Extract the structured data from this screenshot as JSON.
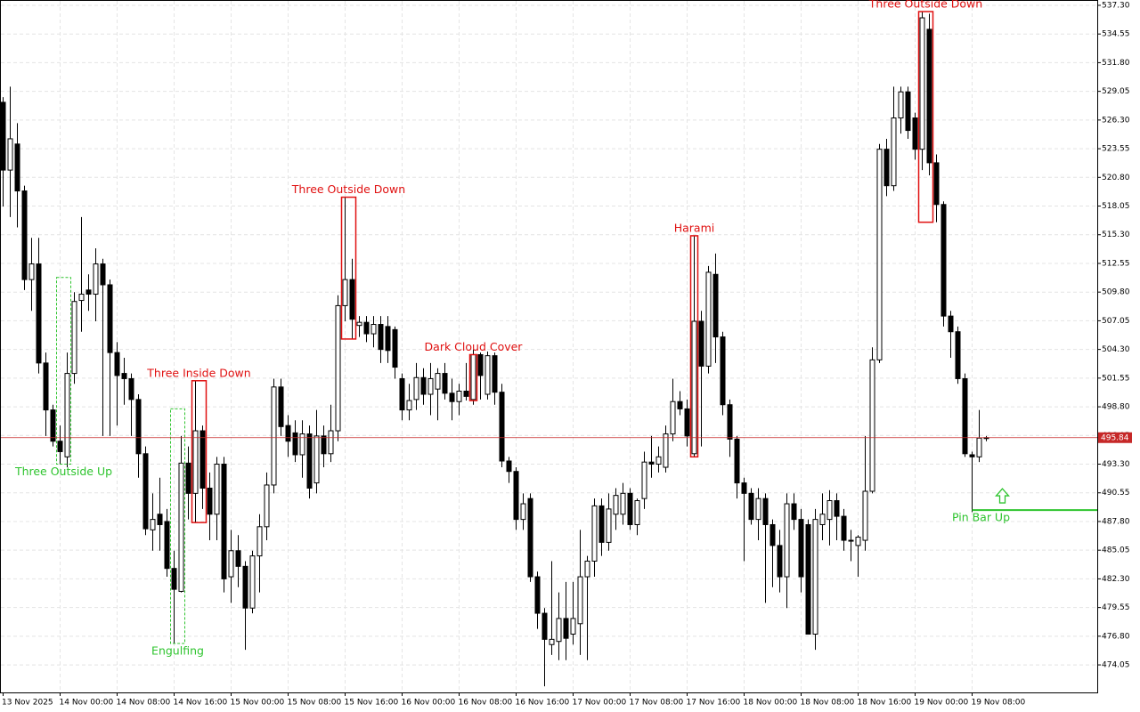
{
  "chart_data": {
    "type": "candlestick",
    "categories": [
      "13 Nov 2025",
      null,
      null,
      null,
      null,
      null,
      null,
      null,
      "14 Nov 00:00",
      null,
      null,
      null,
      null,
      null,
      null,
      null,
      "14 Nov 08:00",
      null,
      null,
      null,
      null,
      null,
      null,
      null,
      "14 Nov 16:00",
      null,
      null,
      null,
      null,
      null,
      null,
      null,
      "15 Nov 00:00",
      null,
      null,
      null,
      null,
      null,
      null,
      null,
      "15 Nov 08:00",
      null,
      null,
      null,
      null,
      null,
      null,
      null,
      "15 Nov 16:00",
      null,
      null,
      null,
      null,
      null,
      null,
      null,
      "16 Nov 00:00",
      null,
      null,
      null,
      null,
      null,
      null,
      null,
      "16 Nov 08:00",
      null,
      null,
      null,
      null,
      null,
      null,
      null,
      "16 Nov 16:00",
      null,
      null,
      null,
      null,
      null,
      null,
      null,
      "17 Nov 00:00",
      null,
      null,
      null,
      null,
      null,
      null,
      null,
      "17 Nov 08:00",
      null,
      null,
      null,
      null,
      null,
      null,
      null,
      "17 Nov 16:00",
      null,
      null,
      null,
      null,
      null,
      null,
      null,
      "18 Nov 00:00",
      null,
      null,
      null,
      null,
      null,
      null,
      null,
      "18 Nov 08:00",
      null,
      null,
      null,
      null,
      null,
      null,
      null,
      "18 Nov 16:00",
      null,
      null,
      null,
      null,
      null,
      null,
      null,
      "19 Nov 00:00",
      null,
      null,
      null,
      null,
      null,
      null,
      null,
      "19 Nov 08:00",
      null,
      null
    ],
    "open": [
      528,
      521.5,
      524,
      519.5,
      511,
      512.5,
      503,
      498.5,
      495.5,
      494,
      502,
      509,
      510,
      509.6,
      512.5,
      510.5,
      504,
      502,
      501.5,
      499.5,
      494.3,
      487,
      488.5,
      487.8,
      483.3,
      481.1,
      493.4,
      490.5,
      496.5,
      491,
      488.5,
      493.3,
      482.5,
      485,
      483.5,
      479.5,
      484.5,
      487.3,
      491.3,
      500.7,
      497,
      496.3,
      494.2,
      496.2,
      491.5,
      496,
      494.3,
      496.5,
      508.5,
      511,
      506.6,
      506.9,
      505.8,
      506.7,
      506.5,
      506.2,
      501.5,
      498.5,
      499.5,
      501.6,
      500,
      500.5,
      502,
      500.1,
      499.3,
      500.3,
      499.5,
      503.8,
      500,
      503.7,
      500.2,
      493.6,
      492.6,
      488,
      490,
      482.5,
      479,
      476,
      476.3,
      478.5,
      477,
      478,
      482.5,
      484,
      489.3,
      485.8,
      488.5,
      488.5,
      490.5,
      487.5,
      490,
      493.5,
      493.3,
      493,
      496.2,
      499.3,
      498.6,
      494.3,
      507,
      502.7,
      511.5,
      505.5,
      499,
      495.7,
      491.5,
      490.5,
      488,
      490,
      487.5,
      485.5,
      482.5,
      489.5,
      488,
      487.5,
      477,
      487.5,
      488,
      489.8,
      488.3,
      486,
      485.5,
      486,
      490.7,
      503.3,
      523.5,
      520,
      526.5,
      529,
      526.5,
      523.5,
      535,
      522.2,
      518.2,
      507.5,
      506,
      501.5,
      494.2,
      494,
      495.8
    ],
    "high": [
      528.5,
      529.5,
      526,
      520,
      515,
      515,
      504,
      499,
      497,
      504,
      509.8,
      517,
      511.5,
      514,
      513,
      511,
      505,
      503.5,
      502,
      500,
      495,
      490.5,
      492,
      489,
      485,
      496,
      495,
      501.3,
      497,
      492.5,
      494,
      494,
      487,
      486.5,
      484,
      485,
      488.5,
      492.5,
      501.5,
      501.5,
      498,
      497.5,
      497.5,
      497,
      498.5,
      497,
      499,
      509.5,
      518.9,
      513,
      507.5,
      507.5,
      507.5,
      507.5,
      507.5,
      506.5,
      502,
      501,
      503,
      502.5,
      503,
      502.5,
      503,
      501.5,
      501,
      503,
      504.3,
      504,
      504.1,
      504,
      501,
      494,
      493,
      490.5,
      490.5,
      483,
      479.5,
      484,
      481,
      482,
      482,
      487,
      484.5,
      490,
      490,
      490.5,
      491,
      491.5,
      491,
      490,
      494.5,
      496,
      495,
      497,
      501.5,
      500.3,
      499.5,
      515.2,
      508,
      512.3,
      513.5,
      506,
      499.5,
      496,
      492,
      491,
      491,
      490.5,
      488,
      487,
      490.5,
      490.5,
      489,
      488,
      489,
      490.5,
      490.8,
      490.5,
      489,
      487,
      486.5,
      496,
      504.5,
      524,
      524.5,
      529.5,
      529.5,
      529.5,
      527,
      536.7,
      536.5,
      523,
      518.5,
      508,
      506.5,
      502,
      494.5,
      498.5,
      496
    ],
    "low": [
      518,
      517,
      516,
      510,
      508,
      502,
      496,
      495,
      493.3,
      493,
      501,
      506,
      508,
      507,
      496,
      496,
      497,
      499,
      496,
      492,
      486.5,
      485,
      485,
      482.5,
      476.1,
      481,
      488,
      487.7,
      489,
      486,
      486,
      481,
      480,
      481.5,
      475.5,
      479,
      481,
      486,
      490.5,
      496,
      494,
      493.5,
      492,
      490,
      490.5,
      493,
      493.5,
      495.5,
      507,
      505.3,
      505.5,
      505,
      504.5,
      503,
      503,
      501.5,
      497.5,
      497.5,
      498.5,
      499,
      498,
      497.5,
      499.5,
      497.5,
      498,
      499.4,
      499,
      499.5,
      499.5,
      499,
      493,
      491.5,
      487,
      487,
      482,
      477.5,
      472,
      475,
      474.5,
      474.5,
      476,
      475,
      474.5,
      482.5,
      484.5,
      485,
      487,
      487.5,
      487,
      486.5,
      489,
      492,
      492.5,
      492.5,
      495.5,
      498,
      495,
      494,
      495,
      502,
      503,
      498,
      494,
      490,
      484,
      487.5,
      486,
      480,
      481.5,
      481,
      479.5,
      487,
      481,
      477,
      475.5,
      486,
      485.5,
      486,
      485,
      484,
      482.5,
      485,
      490.5,
      503,
      519,
      519.5,
      525,
      524.5,
      522.5,
      521.5,
      521,
      516.5,
      506.5,
      503.5,
      501,
      494,
      488.7,
      493.5,
      495.5
    ],
    "close": [
      521.5,
      524.5,
      519.5,
      511,
      512.5,
      503,
      498.5,
      495.5,
      494.5,
      502,
      508.9,
      509.6,
      509.6,
      512.5,
      510.5,
      504,
      501.8,
      501.5,
      499.5,
      494.3,
      487.1,
      488,
      487.5,
      483.3,
      481.3,
      493.4,
      490.5,
      496.5,
      491,
      488.5,
      493.3,
      482.3,
      485,
      483.5,
      479.5,
      484.5,
      487.3,
      491.3,
      500.7,
      496.9,
      495.5,
      494.2,
      496.2,
      491,
      496,
      494.3,
      496.5,
      508.5,
      511,
      507.2,
      506.9,
      505.8,
      506.7,
      504.3,
      504.2,
      502.6,
      498.5,
      499.4,
      501.6,
      500,
      501.5,
      502,
      500.1,
      499.3,
      500.3,
      499.8,
      503.8,
      501.8,
      503.7,
      500.2,
      493.6,
      492.6,
      488,
      489.5,
      482.5,
      479,
      476.5,
      476.5,
      478.5,
      476.6,
      478.5,
      482.5,
      484,
      489.3,
      485.8,
      489,
      490.3,
      490.5,
      487.5,
      489.8,
      493.5,
      493.3,
      494,
      496.2,
      499.3,
      498.6,
      496,
      507,
      502.7,
      511.7,
      505.5,
      499,
      495.7,
      491.5,
      490.5,
      488,
      490,
      487.5,
      485.5,
      482.5,
      489.5,
      488,
      482.5,
      477,
      488,
      488.5,
      489.8,
      488.3,
      486,
      486,
      486.3,
      490.7,
      503.3,
      523.5,
      520,
      526.5,
      529,
      525.3,
      523.5,
      536.1,
      522.2,
      518.2,
      507.5,
      506,
      501.5,
      494.3,
      494,
      495.8,
      495.84
    ],
    "ylim": [
      471.41,
      537.81
    ],
    "yticks": [
      {
        "value": 537.3,
        "label": "537.30"
      },
      534.55,
      {
        "value": 531.8,
        "label": "531.80"
      },
      529.05,
      {
        "value": 526.3,
        "label": "526.30"
      },
      523.55,
      {
        "value": 520.8,
        "label": "520.80"
      },
      518.05,
      {
        "value": 515.3,
        "label": "515.30"
      },
      512.55,
      {
        "value": 509.8,
        "label": "509.80"
      },
      507.05,
      {
        "value": 504.3,
        "label": "504.30"
      },
      501.55,
      {
        "value": 498.8,
        "label": "498.80"
      },
      496.05,
      {
        "value": 493.3,
        "label": "493.30"
      },
      490.55,
      {
        "value": 487.8,
        "label": "487.80"
      },
      485.05,
      {
        "value": 482.3,
        "label": "482.30"
      },
      479.55,
      {
        "value": 476.8,
        "label": "476.80"
      },
      474.05
    ],
    "grid": true,
    "current_price": {
      "value": 495.84,
      "color": "#c62828"
    },
    "patterns": [
      {
        "label": "Three Outside Up",
        "color": "#2ec42e",
        "style": "dashed",
        "start": 8,
        "end": 9,
        "high": 511.2,
        "low": 493.3
      },
      {
        "label": "Engulfing",
        "color": "#2ec42e",
        "style": "dashed",
        "start": 24,
        "end": 25,
        "high": 498.6,
        "low": 476.1
      },
      {
        "label": "Three Inside Down",
        "color": "#e01010",
        "style": "solid",
        "start": 27,
        "end": 28,
        "high": 501.3,
        "low": 487.7
      },
      {
        "label": "Three Outside Down",
        "color": "#e01010",
        "style": "solid",
        "start": 48,
        "end": 49,
        "high": 518.9,
        "low": 505.3
      },
      {
        "label": "Dark Cloud Cover",
        "color": "#e01010",
        "style": "solid",
        "start": 66,
        "end": 66,
        "high": 503.8,
        "low": 499.4
      },
      {
        "label": "Harami",
        "color": "#e01010",
        "style": "solid",
        "start": 97,
        "end": 97,
        "high": 515.2,
        "low": 494.0
      },
      {
        "label": "Three Outside Down",
        "color": "#e01010",
        "style": "solid",
        "start": 129,
        "end": 130,
        "high": 536.7,
        "low": 516.5
      }
    ],
    "pin_bar": {
      "label": "Pin Bar Up",
      "color": "#2ec42e",
      "index": 136,
      "level": 488.9
    }
  }
}
